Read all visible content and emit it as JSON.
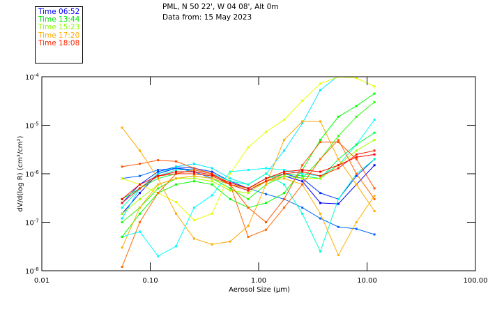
{
  "legend": [
    {
      "label": "Time 06:52",
      "color": "#0000ff"
    },
    {
      "label": "Time 13:44",
      "color": "#00e600"
    },
    {
      "label": "Time 15:23",
      "color": "#88ff00"
    },
    {
      "label": "Time 17:20",
      "color": "#ffaa00"
    },
    {
      "label": "Time 18:08",
      "color": "#ff2200"
    }
  ],
  "header": {
    "line1": "PML, N 50 22', W 04 08', Alt 0m",
    "line2": "Data from: 15 May 2023"
  },
  "chart_data": {
    "type": "line",
    "title": "PML, N 50 22', W 04 08', Alt 0m",
    "subtitle": "Data from: 15 May 2023",
    "xlabel": "Aerosol Size (μm)",
    "ylabel": "dV/d(log R) (cm³/cm²)",
    "xscale": "log",
    "yscale": "log",
    "xlim": [
      0.01,
      100
    ],
    "ylim": [
      1e-08,
      0.0001
    ],
    "xticks": [
      {
        "v": 0.01,
        "label": "0.01"
      },
      {
        "v": 0.1,
        "label": "0.10"
      },
      {
        "v": 1,
        "label": "1.00"
      },
      {
        "v": 10,
        "label": "10.00"
      },
      {
        "v": 100,
        "label": "100.00"
      }
    ],
    "yticks": [
      {
        "v": 0.0001,
        "base": "10",
        "exp": "-4"
      },
      {
        "v": 1e-05,
        "base": "10",
        "exp": "-5"
      },
      {
        "v": 1e-06,
        "base": "10",
        "exp": "-6"
      },
      {
        "v": 1e-07,
        "base": "10",
        "exp": "-7"
      },
      {
        "v": 1e-08,
        "base": "10",
        "exp": "-8"
      }
    ],
    "x": [
      0.055,
      0.08,
      0.118,
      0.173,
      0.254,
      0.372,
      0.546,
      0.801,
      1.17,
      1.72,
      2.53,
      3.71,
      5.44,
      7.98,
      11.7
    ],
    "series": [
      {
        "color": "#0000ff",
        "values": [
          1.5e-07,
          4e-07,
          1e-06,
          1.3e-06,
          1.2e-06,
          1e-06,
          6e-07,
          4.5e-07,
          7e-07,
          9e-07,
          7e-07,
          2.5e-07,
          2.4e-07,
          6e-07,
          1.5e-06
        ]
      },
      {
        "color": "#0033ff",
        "values": [
          2.5e-07,
          6e-07,
          1.1e-06,
          1.4e-06,
          1.3e-06,
          1.1e-06,
          7e-07,
          5e-07,
          8e-07,
          1e-06,
          8e-07,
          4e-07,
          3e-07,
          9e-07,
          2e-06
        ]
      },
      {
        "color": "#0066ff",
        "values": [
          8e-07,
          9e-07,
          1.2e-06,
          1.3e-06,
          1.1e-06,
          8e-07,
          6e-07,
          5e-07,
          3.8e-07,
          3e-07,
          2e-07,
          1.2e-07,
          8e-08,
          7.3e-08,
          5.6e-08
        ]
      },
      {
        "color": "#00ffff",
        "values": [
          5e-08,
          6.4e-08,
          2e-08,
          3.2e-08,
          2e-07,
          3.6e-07,
          1.1e-06,
          1.2e-06,
          1.3e-06,
          1.2e-06,
          1e-06,
          9e-07,
          1.5e-06,
          4e-06,
          1.3e-05
        ]
      },
      {
        "color": "#00e6ff",
        "values": [
          1.2e-07,
          5e-07,
          1e-06,
          1.4e-06,
          1.6e-06,
          1.3e-06,
          8e-07,
          6e-07,
          1e-06,
          3e-06,
          1.1e-05,
          5.3e-05,
          0.000105,
          null,
          null
        ]
      },
      {
        "color": "#00ffcc",
        "values": [
          2e-07,
          5e-07,
          9e-07,
          1.2e-06,
          1.2e-06,
          1e-06,
          7e-07,
          6e-07,
          1e-06,
          6e-07,
          1.5e-07,
          2.5e-08,
          3e-07,
          1e-06,
          2e-06
        ]
      },
      {
        "color": "#00ff00",
        "values": [
          5e-08,
          1.5e-07,
          4e-07,
          6e-07,
          7e-07,
          6e-07,
          3e-07,
          2e-07,
          2.5e-07,
          4e-07,
          1.2e-06,
          5e-06,
          1.5e-05,
          2.5e-05,
          4.5e-05
        ]
      },
      {
        "color": "#22ff00",
        "values": [
          1e-07,
          2e-07,
          5e-07,
          8e-07,
          9e-07,
          8e-07,
          5e-07,
          3e-07,
          6e-07,
          9e-07,
          8e-07,
          2e-06,
          6e-06,
          1.5e-05,
          3e-05
        ]
      },
      {
        "color": "#00ff44",
        "values": [
          3e-07,
          5e-07,
          8e-07,
          1e-06,
          1e-06,
          9e-07,
          6e-07,
          5e-07,
          8e-07,
          1e-06,
          9e-07,
          8e-07,
          2e-06,
          4e-06,
          7e-06
        ]
      },
      {
        "color": "#aaff00",
        "values": [
          1.5e-07,
          3e-07,
          6e-07,
          8e-07,
          8e-07,
          7e-07,
          4.5e-07,
          4e-07,
          7e-07,
          9e-07,
          8e-07,
          8e-07,
          1.5e-06,
          3e-06,
          5e-06
        ]
      },
      {
        "color": "#e6ff00",
        "values": [
          8e-07,
          6e-07,
          4e-07,
          2.6e-07,
          1.1e-07,
          1.5e-07,
          1e-06,
          3.5e-06,
          7.3e-06,
          1.3e-05,
          3.2e-05,
          7.2e-05,
          0.0001,
          9.4e-05,
          6.3e-05
        ]
      },
      {
        "color": "#ffaa00",
        "values": [
          8.9e-06,
          3e-06,
          8e-07,
          1.5e-07,
          4.6e-08,
          3.5e-08,
          4e-08,
          8.4e-08,
          6e-07,
          5e-06,
          1.2e-05,
          1.2e-05,
          2e-06,
          6e-07,
          1.7e-07
        ]
      },
      {
        "color": "#ffb000",
        "values": [
          3e-08,
          2e-07,
          6e-07,
          8e-07,
          9e-07,
          8e-07,
          6e-07,
          5e-07,
          7e-07,
          8e-07,
          6e-07,
          1.5e-07,
          2.1e-08,
          1e-07,
          3.5e-07
        ]
      },
      {
        "color": "#ff6600",
        "values": [
          1.2e-08,
          1e-07,
          4e-07,
          1e-06,
          1.2e-06,
          1e-06,
          6e-07,
          5e-08,
          7e-08,
          2e-07,
          6e-07,
          2e-06,
          5e-06,
          1e-06,
          3e-07
        ]
      },
      {
        "color": "#ff5500",
        "values": [
          1.4e-06,
          1.6e-06,
          1.9e-06,
          1.8e-06,
          1.3e-06,
          1e-06,
          6e-07,
          2e-07,
          1e-07,
          3e-07,
          1.5e-06,
          4.5e-06,
          4.5e-06,
          2e-06,
          5e-07
        ]
      },
      {
        "color": "#ff2200",
        "values": [
          2.5e-07,
          5e-07,
          9e-07,
          1e-06,
          1e-06,
          9e-07,
          6e-07,
          4.5e-07,
          7e-07,
          1e-06,
          1.1e-06,
          9e-07,
          1.3e-06,
          2.5e-06,
          3e-06
        ]
      },
      {
        "color": "#ff0000",
        "values": [
          3e-07,
          6e-07,
          9e-07,
          1.1e-06,
          1.1e-06,
          9.5e-07,
          6.5e-07,
          5e-07,
          8e-07,
          1.1e-06,
          1.2e-06,
          1.1e-06,
          1.5e-06,
          2.2e-06,
          2.5e-06
        ]
      }
    ]
  }
}
